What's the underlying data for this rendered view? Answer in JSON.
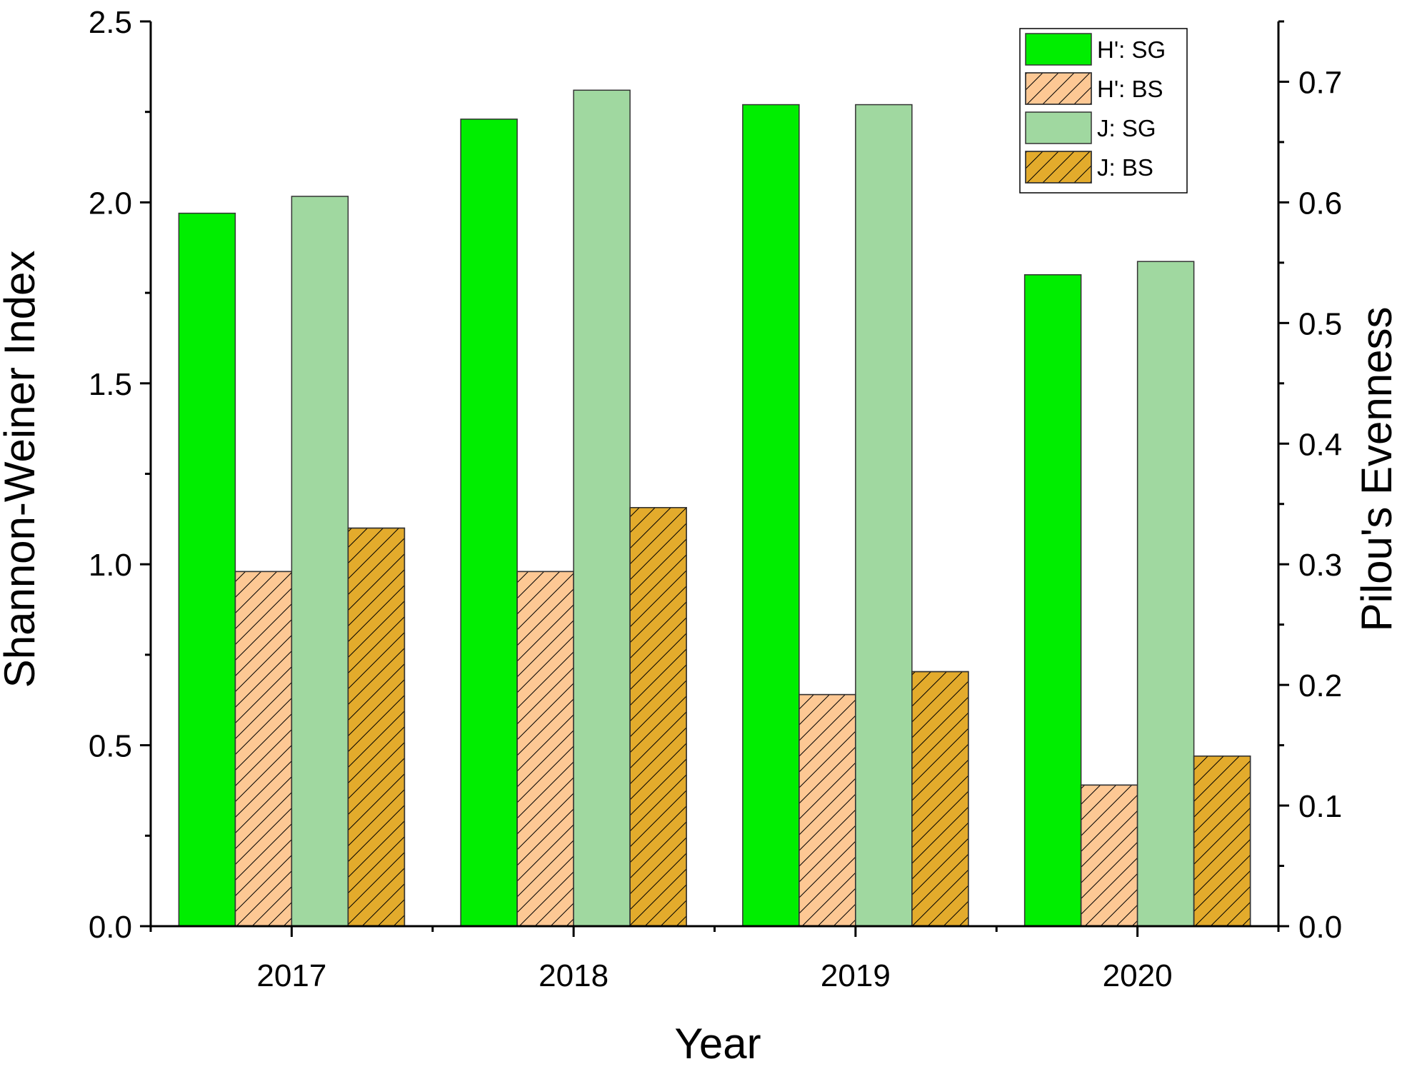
{
  "chart_data": {
    "type": "bar",
    "categories": [
      "2017",
      "2018",
      "2019",
      "2020"
    ],
    "xlabel": "Year",
    "ylabel": "Shannon-Weiner Index",
    "y2label": "Pilou's Evenness",
    "ylim": [
      0,
      2.5
    ],
    "y2lim": [
      0,
      0.75
    ],
    "yticks": [
      "0.0",
      "0.5",
      "1.0",
      "1.5",
      "2.0",
      "2.5"
    ],
    "y2ticks": [
      "0.0",
      "0.1",
      "0.2",
      "0.3",
      "0.4",
      "0.5",
      "0.6",
      "0.7"
    ],
    "grid": false,
    "legend_position": "top-right",
    "series": [
      {
        "name": "H': SG",
        "axis": "left",
        "values": [
          1.97,
          2.23,
          2.27,
          1.8
        ],
        "color": "#00ee00",
        "hatch": false
      },
      {
        "name": "H': BS",
        "axis": "left",
        "values": [
          0.98,
          0.98,
          0.64,
          0.39
        ],
        "color": "#fdc894",
        "hatch": true
      },
      {
        "name": "J: SG",
        "axis": "right",
        "values": [
          0.605,
          0.693,
          0.681,
          0.551
        ],
        "color": "#a0d8a0",
        "hatch": false
      },
      {
        "name": "J: BS",
        "axis": "right",
        "values": [
          0.33,
          0.347,
          0.211,
          0.141
        ],
        "color": "#e3ab2c",
        "hatch": true
      }
    ]
  }
}
